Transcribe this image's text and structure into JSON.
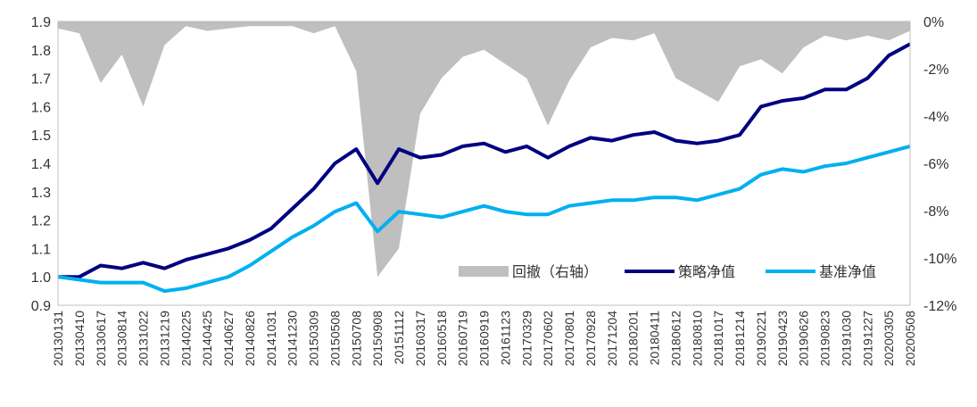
{
  "chart_data": {
    "type": "line",
    "legend_position": "bottom-right",
    "grid": false,
    "x": [
      "20130131",
      "20130410",
      "20130617",
      "20130814",
      "20131022",
      "20131219",
      "20140225",
      "20140425",
      "20140627",
      "20140826",
      "20141031",
      "20141230",
      "20150309",
      "20150508",
      "20150708",
      "20150908",
      "20151112",
      "20160317",
      "20160518",
      "20160719",
      "20160919",
      "20161123",
      "20170329",
      "20170602",
      "20170801",
      "20170928",
      "20171204",
      "20180201",
      "20180411",
      "20180612",
      "20180810",
      "20181017",
      "20181214",
      "20190221",
      "20190423",
      "20190626",
      "20190823",
      "20191030",
      "20191227",
      "20200305",
      "20200508"
    ],
    "left_axis": {
      "min": 0.9,
      "max": 1.9,
      "ticks": [
        "0.9",
        "1.0",
        "1.1",
        "1.2",
        "1.3",
        "1.4",
        "1.5",
        "1.6",
        "1.7",
        "1.8",
        "1.9"
      ]
    },
    "right_axis": {
      "min": -12,
      "max": 0,
      "ticks": [
        "-12%",
        "-10%",
        "-8%",
        "-6%",
        "-4%",
        "-2%",
        "0%"
      ]
    },
    "series": [
      {
        "name": "回撤（右轴）",
        "type": "area",
        "axis": "right",
        "color": "#bfbfbf",
        "values": [
          -0.3,
          -0.5,
          -2.6,
          -1.4,
          -3.6,
          -1.0,
          -0.2,
          -0.4,
          -0.3,
          -0.2,
          -0.2,
          -0.2,
          -0.5,
          -0.2,
          -2.1,
          -10.8,
          -9.6,
          -3.9,
          -2.4,
          -1.5,
          -1.2,
          -1.8,
          -2.4,
          -4.4,
          -2.5,
          -1.1,
          -0.7,
          -0.8,
          -0.5,
          -2.4,
          -2.9,
          -3.4,
          -1.9,
          -1.6,
          -2.2,
          -1.1,
          -0.6,
          -0.8,
          -0.6,
          -0.8,
          -0.4
        ]
      },
      {
        "name": "策略净值",
        "type": "line",
        "axis": "left",
        "color": "#000080",
        "values": [
          1.0,
          1.0,
          1.04,
          1.03,
          1.05,
          1.03,
          1.06,
          1.08,
          1.1,
          1.13,
          1.17,
          1.24,
          1.31,
          1.4,
          1.45,
          1.33,
          1.45,
          1.42,
          1.43,
          1.46,
          1.47,
          1.44,
          1.46,
          1.42,
          1.46,
          1.49,
          1.48,
          1.5,
          1.51,
          1.48,
          1.47,
          1.48,
          1.5,
          1.6,
          1.62,
          1.63,
          1.66,
          1.66,
          1.7,
          1.78,
          1.82
        ]
      },
      {
        "name": "基准净值",
        "type": "line",
        "axis": "left",
        "color": "#00b0f0",
        "values": [
          1.0,
          0.99,
          0.98,
          0.98,
          0.98,
          0.95,
          0.96,
          0.98,
          1.0,
          1.04,
          1.09,
          1.14,
          1.18,
          1.23,
          1.26,
          1.16,
          1.23,
          1.22,
          1.21,
          1.23,
          1.25,
          1.23,
          1.22,
          1.22,
          1.25,
          1.26,
          1.27,
          1.27,
          1.28,
          1.28,
          1.27,
          1.29,
          1.31,
          1.36,
          1.38,
          1.37,
          1.39,
          1.4,
          1.42,
          1.44,
          1.46
        ]
      }
    ]
  }
}
